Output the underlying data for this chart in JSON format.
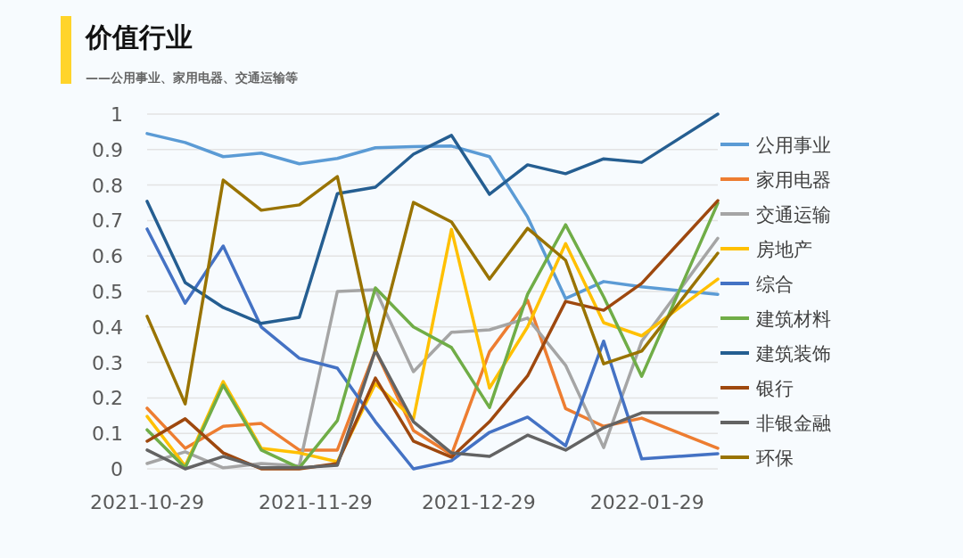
{
  "chart_data": {
    "type": "line",
    "title": "价值行业",
    "subtitle": "——公用事业、家用电器、交通运输等",
    "x": [
      "2021-10-29",
      "2021-11-05",
      "2021-11-12",
      "2021-11-19",
      "2021-11-26",
      "2021-12-03",
      "2021-12-10",
      "2021-12-17",
      "2021-12-24",
      "2021-12-31",
      "2022-01-07",
      "2022-01-14",
      "2022-01-21",
      "2022-01-28",
      "2022-02-11"
    ],
    "xlim": [
      "2021-10-29",
      "2022-02-11"
    ],
    "xticks": [
      "2021-10-29",
      "2021-11-29",
      "2021-12-29",
      "2022-01-29"
    ],
    "ylim": [
      0,
      1
    ],
    "yticks": [
      0,
      0.1,
      0.2,
      0.3,
      0.4,
      0.5,
      0.6,
      0.7,
      0.8,
      0.9,
      1
    ],
    "grid": "y",
    "legend": "right",
    "marker": "none",
    "line_style": "solid",
    "series": [
      {
        "name": "公用事业",
        "color": "#5b9bd5",
        "values": [
          0.945,
          0.92,
          0.88,
          0.89,
          0.86,
          0.875,
          0.905,
          0.908,
          0.91,
          0.88,
          0.71,
          0.48,
          0.528,
          0.513,
          0.492
        ]
      },
      {
        "name": "家用电器",
        "color": "#ed7d31",
        "values": [
          0.171,
          0.058,
          0.12,
          0.128,
          0.053,
          0.053,
          0.334,
          0.108,
          0.04,
          0.33,
          0.475,
          0.17,
          0.12,
          0.143,
          0.058
        ]
      },
      {
        "name": "交通运输",
        "color": "#a5a5a5",
        "values": [
          0.015,
          0.048,
          0.003,
          0.015,
          0.008,
          0.5,
          0.505,
          0.274,
          0.385,
          0.392,
          0.425,
          0.292,
          0.06,
          0.36,
          0.65
        ]
      },
      {
        "name": "房地产",
        "color": "#ffc000",
        "values": [
          0.148,
          0.008,
          0.246,
          0.058,
          0.045,
          0.02,
          0.24,
          0.14,
          0.675,
          0.228,
          0.4,
          0.635,
          0.412,
          0.375,
          0.535
        ]
      },
      {
        "name": "综合",
        "color": "#4472c4",
        "values": [
          0.676,
          0.467,
          0.628,
          0.4,
          0.312,
          0.284,
          0.133,
          0,
          0.023,
          0.103,
          0.146,
          0.065,
          0.36,
          0.028,
          0.043
        ]
      },
      {
        "name": "建筑材料",
        "color": "#70ad47",
        "values": [
          0.11,
          0.003,
          0.236,
          0.053,
          0.003,
          0.136,
          0.51,
          0.4,
          0.342,
          0.173,
          0.492,
          0.688,
          0.485,
          0.261,
          0.749
        ]
      },
      {
        "name": "建筑装饰",
        "color": "#255e91",
        "values": [
          0.754,
          0.525,
          0.455,
          0.41,
          0.427,
          0.776,
          0.794,
          0.887,
          0.94,
          0.774,
          0.857,
          0.832,
          0.874,
          0.864,
          1
        ]
      },
      {
        "name": "银行",
        "color": "#9e480e",
        "values": [
          0.078,
          0.141,
          0.045,
          0,
          0,
          0.015,
          0.256,
          0.078,
          0.033,
          0.133,
          0.262,
          0.472,
          0.447,
          0.523,
          0.756
        ]
      },
      {
        "name": "非银金融",
        "color": "#636363",
        "values": [
          0.053,
          0,
          0.035,
          0.003,
          0.003,
          0.01,
          0.334,
          0.133,
          0.045,
          0.035,
          0.095,
          0.053,
          0.116,
          0.158,
          0.158
        ]
      },
      {
        "name": "环保",
        "color": "#997300",
        "values": [
          0.43,
          0.183,
          0.814,
          0.729,
          0.744,
          0.824,
          0.334,
          0.751,
          0.696,
          0.535,
          0.678,
          0.588,
          0.296,
          0.332,
          0.608
        ]
      }
    ]
  }
}
